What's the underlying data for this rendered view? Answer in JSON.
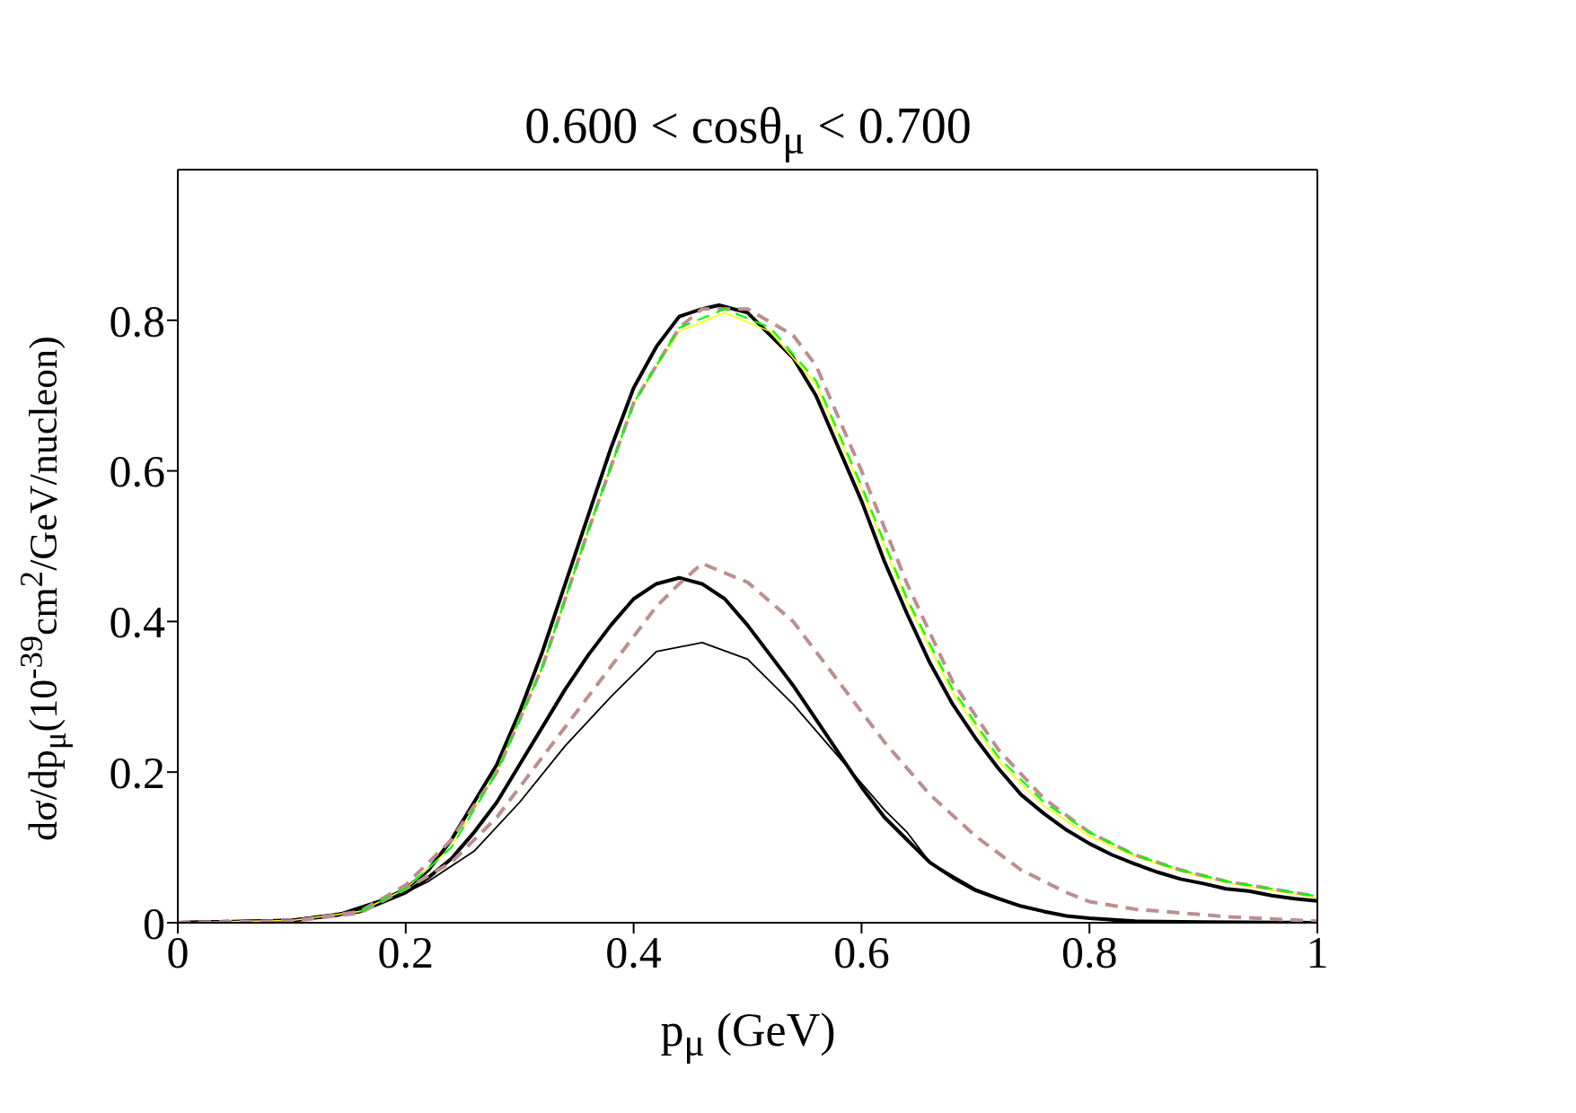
{
  "chart_data": {
    "type": "line",
    "title": "0.600 < cosθ$_{μ}$ < 0.700",
    "xlabel": "p$_{μ}$ (GeV)",
    "ylabel": "dσ/dp$_{μ}$(10$^{-39}$cm$^{2}$/GeV/nucleon)",
    "xlim": [
      0,
      1
    ],
    "xticks": [
      0,
      0.2,
      0.4,
      0.6,
      0.8,
      1
    ],
    "ylim": [
      0,
      1
    ],
    "yticks": [
      0,
      0.2,
      0.4,
      0.6,
      0.8
    ],
    "marker": "none",
    "series": [
      {
        "color": "#000000",
        "line_style": "solid",
        "x": [
          0,
          0.1,
          0.14,
          0.18,
          0.2,
          0.22,
          0.24,
          0.26,
          0.28,
          0.3,
          0.32,
          0.34,
          0.36,
          0.38,
          0.4,
          0.42,
          0.44,
          0.46,
          0.475,
          0.5,
          0.52,
          0.54,
          0.56,
          0.58,
          0.6,
          0.62,
          0.64,
          0.66,
          0.68,
          0.7,
          0.72,
          0.74,
          0.76,
          0.78,
          0.8,
          0.82,
          0.84,
          0.86,
          0.88,
          0.9,
          0.92,
          0.94,
          0.96,
          0.98,
          1
        ],
        "values": [
          0,
          0.003,
          0.01,
          0.03,
          0.045,
          0.07,
          0.11,
          0.16,
          0.21,
          0.28,
          0.36,
          0.45,
          0.54,
          0.63,
          0.71,
          0.765,
          0.805,
          0.815,
          0.82,
          0.81,
          0.78,
          0.75,
          0.7,
          0.63,
          0.56,
          0.48,
          0.41,
          0.345,
          0.29,
          0.245,
          0.205,
          0.17,
          0.145,
          0.123,
          0.105,
          0.09,
          0.078,
          0.067,
          0.058,
          0.052,
          0.045,
          0.042,
          0.036,
          0.032,
          0.029
        ]
      },
      {
        "color": "#00ff00",
        "line_style": "dashed",
        "x": [
          0.16,
          0.2,
          0.24,
          0.28,
          0.32,
          0.36,
          0.4,
          0.44,
          0.48,
          0.52,
          0.56,
          0.6,
          0.64,
          0.68,
          0.72,
          0.76,
          0.8,
          0.84,
          0.88,
          0.92,
          0.96,
          1
        ],
        "values": [
          0.015,
          0.045,
          0.1,
          0.2,
          0.34,
          0.52,
          0.69,
          0.79,
          0.815,
          0.79,
          0.72,
          0.58,
          0.43,
          0.31,
          0.22,
          0.16,
          0.12,
          0.09,
          0.07,
          0.055,
          0.045,
          0.035
        ]
      },
      {
        "color": "#ffff00",
        "line_style": "solid",
        "x": [
          0,
          0.1,
          0.16,
          0.2,
          0.24,
          0.28,
          0.32,
          0.36,
          0.4,
          0.44,
          0.48,
          0.52,
          0.56,
          0.6,
          0.64,
          0.68,
          0.72,
          0.76,
          0.8,
          0.84,
          0.88,
          0.92,
          0.96,
          1
        ],
        "values": [
          0,
          0.003,
          0.015,
          0.045,
          0.1,
          0.2,
          0.34,
          0.52,
          0.69,
          0.785,
          0.81,
          0.785,
          0.715,
          0.575,
          0.425,
          0.305,
          0.215,
          0.155,
          0.115,
          0.088,
          0.068,
          0.053,
          0.043,
          0.033
        ]
      },
      {
        "color": "#bc8f8f",
        "line_style": "dashed",
        "x": [
          0,
          0.1,
          0.16,
          0.2,
          0.24,
          0.28,
          0.32,
          0.36,
          0.4,
          0.44,
          0.46,
          0.5,
          0.54,
          0.56,
          0.6,
          0.64,
          0.68,
          0.72,
          0.76,
          0.8,
          0.84,
          0.88,
          0.92,
          0.96,
          1
        ],
        "values": [
          0,
          0.002,
          0.015,
          0.05,
          0.11,
          0.2,
          0.34,
          0.52,
          0.69,
          0.79,
          0.815,
          0.815,
          0.78,
          0.74,
          0.6,
          0.45,
          0.32,
          0.23,
          0.165,
          0.12,
          0.09,
          0.07,
          0.055,
          0.045,
          0.035
        ]
      },
      {
        "color": "#000000",
        "line_style": "solid",
        "x": [
          0,
          0.1,
          0.16,
          0.2,
          0.22,
          0.24,
          0.26,
          0.28,
          0.3,
          0.32,
          0.34,
          0.36,
          0.38,
          0.4,
          0.42,
          0.44,
          0.46,
          0.48,
          0.5,
          0.52,
          0.54,
          0.56,
          0.58,
          0.6,
          0.62,
          0.64,
          0.66,
          0.68,
          0.7,
          0.72,
          0.74,
          0.76,
          0.78,
          0.8,
          0.84,
          0.9,
          1
        ],
        "values": [
          0,
          0.003,
          0.015,
          0.04,
          0.06,
          0.085,
          0.12,
          0.16,
          0.21,
          0.26,
          0.31,
          0.355,
          0.395,
          0.43,
          0.45,
          0.458,
          0.45,
          0.43,
          0.395,
          0.355,
          0.315,
          0.27,
          0.225,
          0.18,
          0.14,
          0.11,
          0.08,
          0.06,
          0.043,
          0.032,
          0.022,
          0.015,
          0.009,
          0.006,
          0.002,
          0.001,
          0
        ]
      },
      {
        "color": "#000000",
        "line_style": "solid",
        "x": [
          0,
          0.1,
          0.16,
          0.2,
          0.22,
          0.24,
          0.26,
          0.3,
          0.34,
          0.38,
          0.42,
          0.46,
          0.5,
          0.54,
          0.58,
          0.62,
          0.64,
          0.66,
          0.7,
          0.74,
          0.78,
          0.82,
          0.9,
          1
        ],
        "values": [
          0,
          0.003,
          0.015,
          0.04,
          0.055,
          0.075,
          0.095,
          0.16,
          0.235,
          0.3,
          0.36,
          0.372,
          0.35,
          0.29,
          0.22,
          0.15,
          0.12,
          0.08,
          0.045,
          0.022,
          0.009,
          0.003,
          0.001,
          0
        ]
      },
      {
        "color": "#bc8f8f",
        "line_style": "dashed",
        "x": [
          0,
          0.1,
          0.16,
          0.2,
          0.24,
          0.28,
          0.32,
          0.36,
          0.4,
          0.42,
          0.44,
          0.46,
          0.5,
          0.54,
          0.58,
          0.62,
          0.66,
          0.7,
          0.74,
          0.78,
          0.8,
          0.84,
          0.88,
          0.92,
          0.96,
          1
        ],
        "values": [
          0,
          0.002,
          0.013,
          0.045,
          0.08,
          0.14,
          0.22,
          0.3,
          0.38,
          0.42,
          0.45,
          0.477,
          0.452,
          0.4,
          0.32,
          0.24,
          0.17,
          0.115,
          0.07,
          0.04,
          0.028,
          0.018,
          0.013,
          0.008,
          0.005,
          0.002
        ]
      }
    ]
  }
}
